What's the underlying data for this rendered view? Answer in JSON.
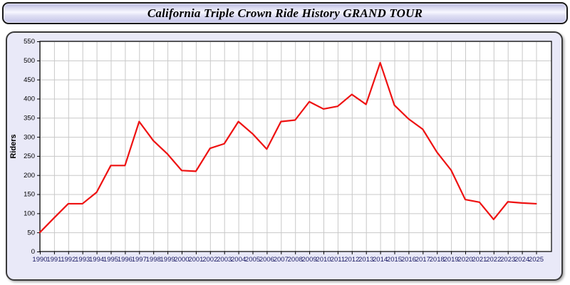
{
  "header": {
    "title": "California Triple Crown Ride History GRAND TOUR"
  },
  "chart_data": {
    "type": "line",
    "title": "California Triple Crown Ride History GRAND TOUR",
    "xlabel": "",
    "ylabel": "Riders",
    "ylim": [
      0,
      550
    ],
    "ytick_step": 50,
    "grid": true,
    "legend": "none",
    "categories": [
      "1990",
      "1991",
      "1992",
      "1993",
      "1994",
      "1995",
      "1996",
      "1997",
      "1998",
      "1999",
      "2000",
      "2001",
      "2002",
      "2003",
      "2004",
      "2005",
      "2006",
      "2007",
      "2008",
      "2009",
      "2010",
      "2011",
      "2012",
      "2013",
      "2014",
      "2015",
      "2016",
      "2017",
      "2018",
      "2019",
      "2020",
      "2021",
      "2022",
      "2023",
      "2024",
      "2025"
    ],
    "series": [
      {
        "name": "Riders",
        "values": [
          50,
          88,
          125,
          125,
          155,
          225,
          225,
          340,
          290,
          255,
          212,
          210,
          270,
          282,
          340,
          308,
          268,
          340,
          344,
          392,
          373,
          380,
          411,
          385,
          494,
          383,
          347,
          320,
          260,
          213,
          136,
          129,
          84,
          130,
          127,
          125
        ]
      }
    ]
  },
  "colors": {
    "line": "#ee1111",
    "grid": "#c8c8c8",
    "plot_frame": "#000000",
    "plot_background": "#ffffff",
    "panel_background": "#e9e9f8",
    "y_tick_label": "#000000",
    "x_tick_label": "#1b1b64",
    "axis_title": "#000000"
  }
}
